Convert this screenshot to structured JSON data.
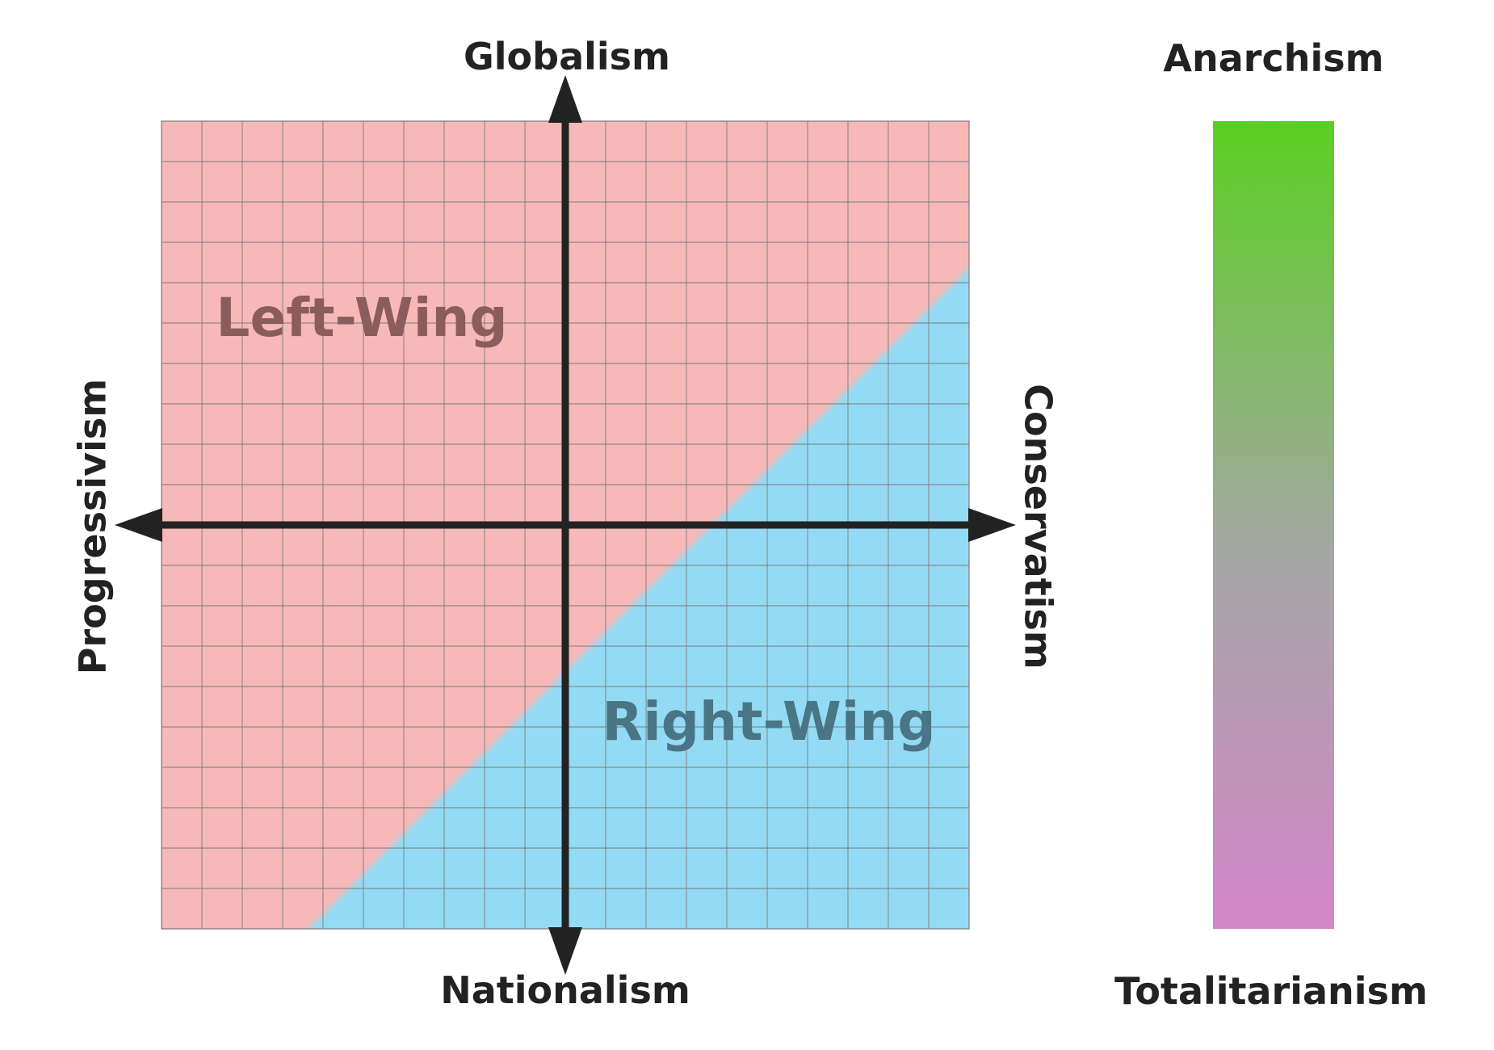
{
  "compass": {
    "axis_labels": {
      "top": "Globalism",
      "bottom": "Nationalism",
      "left": "Progressivism",
      "right": "Conservatism"
    },
    "region_labels": {
      "upper_left": "Left-Wing",
      "lower_right": "Right-Wing"
    },
    "grid_divisions": 20
  },
  "scale": {
    "top_label": "Anarchism",
    "bottom_label": "Totalitarianism"
  },
  "colors": {
    "left_wing_fill": "#f7b8b8",
    "right_wing_fill": "#93dbf4",
    "grid_line": "#7a7a7a",
    "axis": "#222222",
    "left_wing_text": "#8a5c5c",
    "right_wing_text": "#4a7585",
    "scale_top": "#5bcf22",
    "scale_middle": "#a6a6a6",
    "scale_bottom": "#d486c9"
  }
}
